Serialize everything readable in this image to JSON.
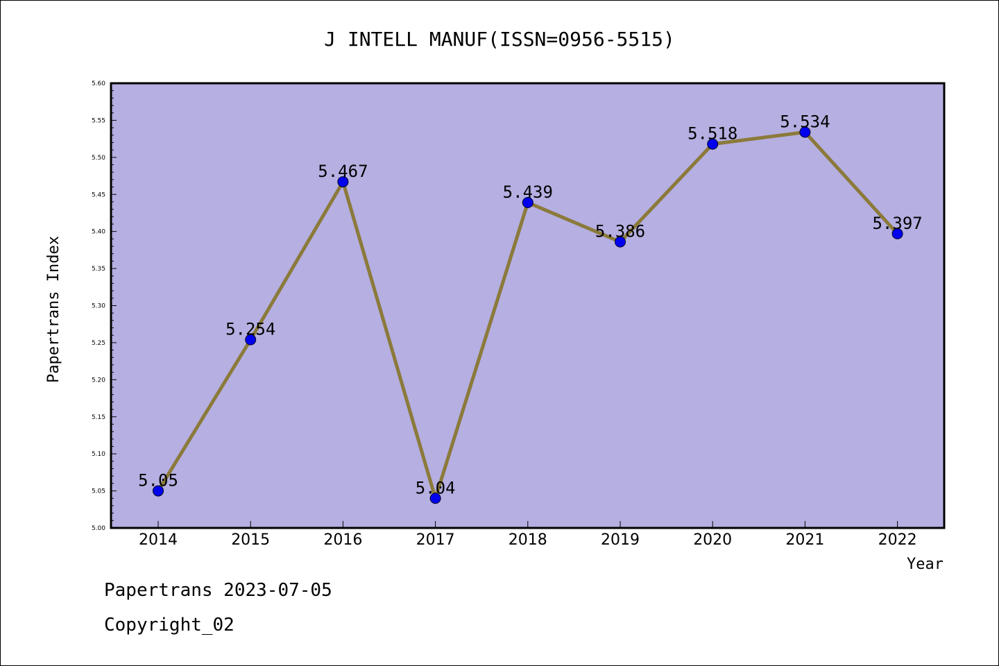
{
  "chart_data": {
    "type": "line",
    "title": "J INTELL MANUF(ISSN=0956-5515)",
    "xlabel": "Year",
    "ylabel": "Papertrans Index",
    "categories": [
      "2014",
      "2015",
      "2016",
      "2017",
      "2018",
      "2019",
      "2020",
      "2021",
      "2022"
    ],
    "values": [
      5.05,
      5.254,
      5.467,
      5.04,
      5.439,
      5.386,
      5.518,
      5.534,
      5.397
    ],
    "data_labels": [
      "5.05",
      "5.254",
      "5.467",
      "5.04",
      "5.439",
      "5.386",
      "5.518",
      "5.534",
      "5.397"
    ],
    "ylim": [
      5.0,
      5.6
    ],
    "yticks": [
      "5.00",
      "5.05",
      "5.10",
      "5.15",
      "5.20",
      "5.25",
      "5.30",
      "5.35",
      "5.40",
      "5.45",
      "5.50",
      "5.55",
      "5.60"
    ],
    "grid": false,
    "colors": {
      "plot_background": "#b5afe2",
      "line": "#8b7a3a",
      "marker": "#0000ee"
    }
  },
  "footer": {
    "line1": "Papertrans 2023-07-05",
    "line2": "Copyright_02"
  }
}
